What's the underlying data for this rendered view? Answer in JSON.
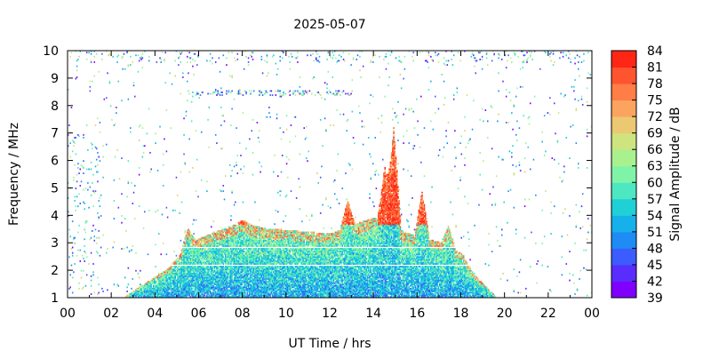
{
  "chart_data": {
    "type": "heatmap",
    "title": "2025-05-07",
    "xlabel": "UT Time / hrs",
    "ylabel": "Frequency / MHz",
    "xlim": [
      0,
      24
    ],
    "ylim": [
      1,
      10
    ],
    "x_ticks": [
      "00",
      "02",
      "04",
      "06",
      "08",
      "10",
      "12",
      "14",
      "16",
      "18",
      "20",
      "22",
      "00"
    ],
    "y_ticks": [
      "1",
      "2",
      "3",
      "4",
      "5",
      "6",
      "7",
      "8",
      "9",
      "10"
    ],
    "colorbar": {
      "label": "Signal Amplitude / dB",
      "min": 39,
      "max": 84,
      "ticks": [
        "84",
        "81",
        "78",
        "75",
        "72",
        "69",
        "66",
        "63",
        "60",
        "57",
        "54",
        "51",
        "48",
        "45",
        "42",
        "39"
      ],
      "colors": [
        "#7f00ff",
        "#5a2dff",
        "#3c5cff",
        "#1f8cf5",
        "#16b1ea",
        "#1fd0d6",
        "#4de8c1",
        "#7ff4a8",
        "#a9f18f",
        "#cee47f",
        "#ecc873",
        "#fba460",
        "#ff7d47",
        "#ff5430",
        "#ff2615"
      ]
    },
    "main_emission": {
      "description_ok": false,
      "start_hr": 2.6,
      "end_hr": 19.6,
      "lower_freq_mhz": 1.0,
      "envelope_hr": [
        2.6,
        3.5,
        4.5,
        5.2,
        5.6,
        6.5,
        7.5,
        8.0,
        9.0,
        10.5,
        12.0,
        13.0,
        14.0,
        15.0,
        16.0,
        17.0,
        18.0,
        18.6,
        19.6
      ],
      "envelope_mhz": [
        1.0,
        1.5,
        2.0,
        2.6,
        3.0,
        3.3,
        3.6,
        3.7,
        3.5,
        3.4,
        3.3,
        3.6,
        3.9,
        3.5,
        3.2,
        3.0,
        2.6,
        1.8,
        1.0
      ],
      "peak_hr": [
        5.5,
        8.0,
        12.8,
        14.5,
        14.9,
        16.2,
        17.4
      ],
      "peak_mhz": [
        3.5,
        3.8,
        4.5,
        5.8,
        7.2,
        4.9,
        3.6
      ]
    }
  }
}
